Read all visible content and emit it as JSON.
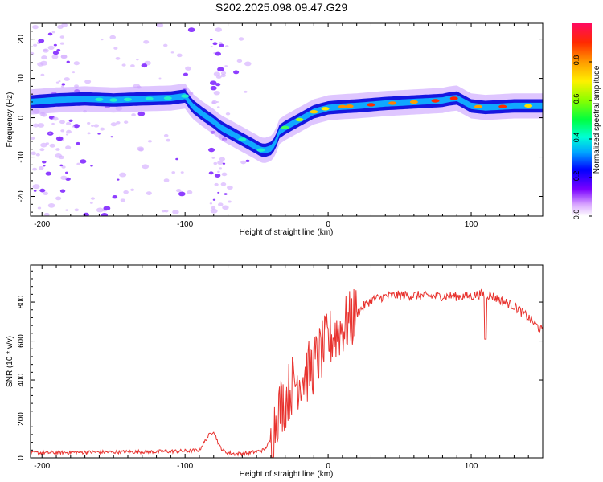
{
  "title": "S202.2025.098.09.47.G29",
  "chart_data": [
    {
      "type": "heatmap",
      "xlabel": "Height of straight line (km)",
      "ylabel": "Frequency (Hz)",
      "xlim": [
        -208,
        150
      ],
      "ylim": [
        -25,
        24
      ],
      "xticks": [
        -200,
        -100,
        0,
        100
      ],
      "yticks": [
        20,
        10,
        0,
        -10,
        -20
      ],
      "colorbar": {
        "label": "Normalized spectral amplitude",
        "range": [
          0,
          1
        ],
        "ticks": [
          "0.0",
          "0.2",
          "0.4",
          "0.6",
          "0.8"
        ],
        "tick_values": [
          0,
          0.2,
          0.4,
          0.6,
          0.8
        ]
      },
      "ridge": {
        "x": [
          -208,
          -190,
          -170,
          -150,
          -130,
          -110,
          -100,
          -95,
          -88,
          -80,
          -75,
          -70,
          -65,
          -60,
          -55,
          -50,
          -47,
          -44,
          -40,
          -37,
          -34,
          -30,
          -25,
          -20,
          -15,
          -10,
          -5,
          0,
          10,
          20,
          30,
          40,
          50,
          60,
          70,
          80,
          85,
          90,
          95,
          100,
          110,
          120,
          130,
          140,
          150
        ],
        "y": [
          4,
          4.5,
          4.8,
          4.5,
          4.8,
          5,
          5.5,
          3,
          1,
          -1,
          -2.5,
          -3.5,
          -4.5,
          -5.5,
          -6.5,
          -7.5,
          -8.2,
          -8.3,
          -7.8,
          -6.5,
          -3.5,
          -2.5,
          -1.5,
          -0.5,
          0.5,
          1.5,
          2,
          2.5,
          2.8,
          3,
          3.3,
          3.6,
          3.8,
          4,
          4.2,
          4.4,
          4.8,
          5,
          4,
          3,
          2.6,
          2.8,
          3,
          3,
          3
        ]
      }
    },
    {
      "type": "line",
      "xlabel": "Height of straight line (km)",
      "ylabel": "SNR (10 * v/v)",
      "xlim": [
        -208,
        150
      ],
      "ylim": [
        0,
        990
      ],
      "xticks": [
        -200,
        -100,
        0,
        100
      ],
      "yticks": [
        0,
        200,
        400,
        600,
        800
      ],
      "series": [
        {
          "color": "#e8322e",
          "x": [
            -208,
            -180,
            -150,
            -120,
            -100,
            -90,
            -84,
            -80,
            -76,
            -72,
            -65,
            -55,
            -45,
            -40,
            -35,
            -30,
            -25,
            -20,
            -15,
            -10,
            -5,
            0,
            5,
            10,
            15,
            20,
            25,
            30,
            40,
            50,
            60,
            70,
            80,
            90,
            100,
            105,
            110,
            115,
            120,
            130,
            140,
            150
          ],
          "y": [
            25,
            28,
            30,
            32,
            35,
            40,
            110,
            140,
            60,
            30,
            20,
            25,
            40,
            90,
            250,
            300,
            380,
            410,
            430,
            480,
            540,
            600,
            640,
            670,
            700,
            740,
            780,
            810,
            830,
            835,
            835,
            830,
            830,
            830,
            830,
            840,
            840,
            830,
            810,
            780,
            720,
            650
          ]
        }
      ]
    }
  ]
}
